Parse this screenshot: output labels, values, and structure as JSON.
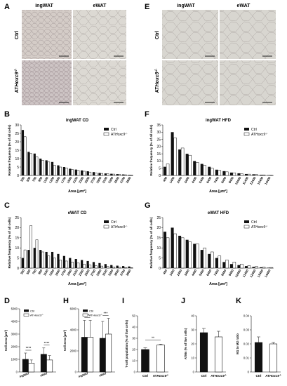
{
  "figure": {
    "panels": {
      "A": {
        "letter": "A",
        "col_left": "ingWAT",
        "col_right": "eWAT",
        "row_top": "Ctrl",
        "row_bottom_prefix": "AT",
        "row_bottom_italic": "Hoxc9",
        "row_bottom_sup": "-/-"
      },
      "E": {
        "letter": "E",
        "col_left": "ingWAT",
        "col_right": "eWAT",
        "row_top": "Ctrl",
        "row_bottom_prefix": "AT",
        "row_bottom_italic": "Hoxc9",
        "row_bottom_sup": "-/-"
      },
      "B": {
        "letter": "B"
      },
      "C": {
        "letter": "C"
      },
      "F": {
        "letter": "F"
      },
      "G": {
        "letter": "G"
      },
      "D": {
        "letter": "D"
      },
      "H": {
        "letter": "H"
      },
      "I": {
        "letter": "I"
      },
      "J": {
        "letter": "J"
      },
      "K": {
        "letter": "K"
      }
    },
    "legend": {
      "ctrl": "Ctrl",
      "ko_prefix": "AT",
      "ko_italic": "Hoxc9",
      "ko_sup": "-/-"
    },
    "colors": {
      "ctrl": "#111111",
      "ko": "#ffffff",
      "ingwat_tissue": "#cbc4bf",
      "ewat_tissue": "#d6d3cd",
      "ko_ingwat_tissue": "#c8bfc0"
    }
  },
  "chart_data": [
    {
      "id": "B",
      "type": "bar",
      "title": "ingWAT CD",
      "xlabel": "Area [µm²]",
      "ylabel": "Relative frequency (% of all cells)",
      "ylim": [
        0,
        30
      ],
      "yticks": [
        0,
        5,
        10,
        15,
        20,
        25,
        30
      ],
      "categories": [
        "300",
        "500",
        "700",
        "900",
        "1100",
        "1300",
        "1500",
        "1700",
        "1900",
        "2100",
        "2300",
        "2500",
        "2700",
        "2900",
        "3100",
        "3300",
        "3500",
        "3700",
        "3900"
      ],
      "series": [
        {
          "name": "Ctrl",
          "values": [
            27,
            14,
            13,
            10,
            9,
            8,
            6,
            5,
            4,
            3.5,
            3,
            2.5,
            2,
            1.5,
            1.2,
            1,
            0.8,
            0.6,
            0.4
          ]
        },
        {
          "name": "ATHoxc9-/-",
          "values": [
            23,
            13,
            11,
            9,
            8,
            6,
            5,
            4.5,
            3.5,
            3,
            2.5,
            2,
            1.5,
            1.2,
            1,
            0.8,
            0.6,
            0.4,
            0.3
          ]
        }
      ]
    },
    {
      "id": "F",
      "type": "bar",
      "title": "ingWAT HFD",
      "xlabel": "Area [µm²]",
      "ylabel": "Relative frequency (% of all cells)",
      "ylim": [
        0,
        35
      ],
      "yticks": [
        0,
        5,
        10,
        15,
        20,
        25,
        30,
        35
      ],
      "categories": [
        "400",
        "1400",
        "2400",
        "3400",
        "4400",
        "5400",
        "6400",
        "7400",
        "8400",
        "9400",
        "10400",
        "11400",
        "12400",
        "13400",
        "14400"
      ],
      "series": [
        {
          "name": "Ctrl",
          "values": [
            6,
            30,
            18,
            15,
            10,
            8,
            6,
            4,
            3,
            2,
            1.5,
            1,
            0.8,
            0.5,
            0.3
          ]
        },
        {
          "name": "ATHoxc9-/-",
          "values": [
            8,
            26,
            19,
            14,
            9,
            7,
            5,
            3.5,
            2.5,
            1.8,
            1.2,
            0.9,
            0.6,
            0.4,
            0.2
          ]
        }
      ]
    },
    {
      "id": "C",
      "type": "bar",
      "title": "eWAT CD",
      "xlabel": "Area [µm²]",
      "ylabel": "Relative frequency (% of all cells)",
      "ylim": [
        0,
        25
      ],
      "yticks": [
        0,
        5,
        10,
        15,
        20,
        25
      ],
      "categories": [
        "300",
        "500",
        "700",
        "900",
        "1100",
        "1300",
        "1500",
        "1700",
        "1900",
        "2100",
        "2300",
        "2500",
        "2700",
        "2900",
        "3100",
        "3300",
        "3500",
        "3700",
        "3900"
      ],
      "series": [
        {
          "name": "Ctrl",
          "values": [
            5,
            9,
            10,
            9,
            8,
            8,
            7,
            6,
            5,
            4.5,
            4,
            3.5,
            3,
            2.5,
            2,
            1.5,
            1.2,
            1,
            0.8
          ]
        },
        {
          "name": "ATHoxc9-/-",
          "values": [
            9,
            21,
            14,
            8,
            6,
            5,
            4,
            3.5,
            3,
            2.5,
            2,
            1.5,
            1.2,
            1,
            0.8,
            0.6,
            0.4,
            0.3,
            0.2
          ]
        }
      ]
    },
    {
      "id": "G",
      "type": "bar",
      "title": "eWAT HFD",
      "xlabel": "Area [µm²]",
      "ylabel": "Relative frequency (% of all cells)",
      "ylim": [
        0,
        25
      ],
      "yticks": [
        0,
        5,
        10,
        15,
        20,
        25
      ],
      "categories": [
        "400",
        "1400",
        "2400",
        "3400",
        "4400",
        "5400",
        "6400",
        "7400",
        "8400",
        "9400",
        "10400",
        "11400",
        "12400",
        "13400",
        "14400"
      ],
      "series": [
        {
          "name": "Ctrl",
          "values": [
            18,
            20,
            16,
            14,
            12,
            9,
            7,
            5,
            3,
            2,
            1.5,
            1,
            0.6,
            0.4,
            0.2
          ]
        },
        {
          "name": "ATHoxc9-/-",
          "values": [
            15,
            17,
            15,
            13,
            12,
            10,
            8,
            6,
            4,
            3,
            2,
            1.2,
            0.8,
            0.5,
            0.3
          ]
        }
      ]
    },
    {
      "id": "D",
      "type": "bar",
      "ylabel": "Cell area (µm²)",
      "categories": [
        "ingWAT",
        "eWAT"
      ],
      "ylim": [
        0,
        5000
      ],
      "yticks": [
        0,
        1000,
        2000,
        3000,
        4000,
        5000
      ],
      "series": [
        {
          "name": "Ctrl",
          "values": [
            1000,
            1400
          ],
          "errors": [
            500,
            500
          ]
        },
        {
          "name": "ATHoxc9-/-",
          "values": [
            700,
            950
          ],
          "errors": [
            250,
            350
          ]
        }
      ],
      "significance": [
        "****",
        "****"
      ]
    },
    {
      "id": "H",
      "type": "bar",
      "ylabel": "Cell area (µm²)",
      "categories": [
        "ingWAT",
        "eWAT"
      ],
      "ylim": [
        0,
        6000
      ],
      "yticks": [
        0,
        2000,
        4000,
        6000
      ],
      "series": [
        {
          "name": "Ctrl",
          "values": [
            3300,
            3200
          ],
          "errors": [
            1600,
            1600
          ]
        },
        {
          "name": "ATHoxc9-/-",
          "values": [
            3300,
            3600
          ],
          "errors": [
            1600,
            1500
          ]
        }
      ],
      "significance": [
        "***",
        "***"
      ]
    },
    {
      "id": "I",
      "type": "bar",
      "ylabel": "T-cell population (% of live cells)",
      "categories": [
        "Ctrl",
        "ATHoxc9-/-"
      ],
      "ylim": [
        0,
        50
      ],
      "yticks": [
        0,
        10,
        20,
        30,
        40,
        50
      ],
      "series": [
        {
          "name": "T-cell",
          "values": [
            20,
            24
          ],
          "errors": [
            1.5,
            0.8
          ]
        }
      ],
      "significance": [
        "**"
      ]
    },
    {
      "id": "J",
      "type": "bar",
      "ylabel": "ATMs (% of live cells)",
      "categories": [
        "Ctrl",
        "ATHoxc9-/-"
      ],
      "ylim": [
        0,
        40
      ],
      "yticks": [
        0,
        10,
        20,
        30,
        40
      ],
      "series": [
        {
          "name": "ATMs",
          "values": [
            28,
            25
          ],
          "errors": [
            3,
            4
          ]
        }
      ]
    },
    {
      "id": "K",
      "type": "bar",
      "ylabel": "M1 to M2 ratio",
      "categories": [
        "Ctrl",
        "ATHoxc9-/-"
      ],
      "ylim": [
        0,
        0.04
      ],
      "yticks": [
        0,
        0.01,
        0.02,
        0.03,
        0.04
      ],
      "series": [
        {
          "name": "M1 to M2",
          "values": [
            0.021,
            0.02
          ],
          "errors": [
            0.004,
            0.001
          ]
        }
      ]
    }
  ]
}
